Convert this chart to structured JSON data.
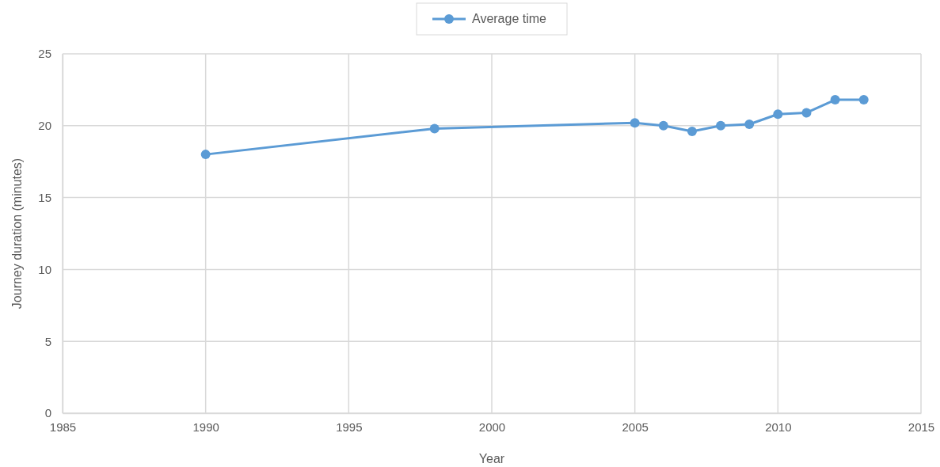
{
  "chart_data": {
    "type": "line",
    "xlabel": "Year",
    "ylabel": "Journey duration (minutes)",
    "x": [
      1990,
      1998,
      2005,
      2006,
      2007,
      2008,
      2009,
      2010,
      2011,
      2012,
      2013
    ],
    "series": [
      {
        "name": "Average time",
        "color": "#5b9bd5",
        "values": [
          18.0,
          19.8,
          20.2,
          20.0,
          19.6,
          20.0,
          20.1,
          20.8,
          20.9,
          21.8,
          21.8
        ]
      }
    ],
    "xlim": [
      1985,
      2015
    ],
    "xticks": [
      1985,
      1990,
      1995,
      2000,
      2005,
      2010,
      2015
    ],
    "ylim": [
      0,
      25
    ],
    "yticks": [
      0,
      5,
      10,
      15,
      20,
      25
    ],
    "grid": true,
    "legend": "top",
    "marker": "circle",
    "line_style": "solid"
  }
}
